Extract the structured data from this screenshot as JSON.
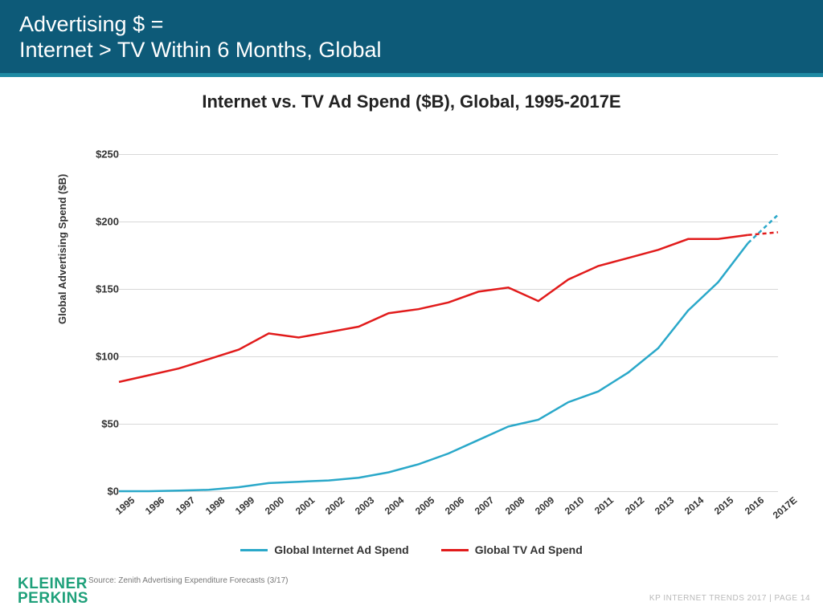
{
  "header": {
    "title_line1": "Advertising $ =",
    "title_line2": "Internet > TV Within 6 Months, Global",
    "bg_color": "#0d5a78",
    "underline_color": "#1e8aa3",
    "text_color": "#ffffff",
    "fontsize": 27
  },
  "chart": {
    "type": "line",
    "title": "Internet vs. TV Ad Spend ($B), Global, 1995-2017E",
    "title_fontsize": 22,
    "ylabel": "Global Advertising Spend ($B)",
    "label_fontsize": 13,
    "ylim": [
      0,
      250
    ],
    "ytick_step": 50,
    "ytick_prefix": "$",
    "x_categories": [
      "1995",
      "1996",
      "1997",
      "1998",
      "1999",
      "2000",
      "2001",
      "2002",
      "2003",
      "2004",
      "2005",
      "2006",
      "2007",
      "2008",
      "2009",
      "2010",
      "2011",
      "2012",
      "2013",
      "2014",
      "2015",
      "2016",
      "2017E"
    ],
    "grid_color": "#d8d8d8",
    "background_color": "#ffffff",
    "axis_color": "#333333",
    "tick_fontsize": 13,
    "xtick_fontsize": 12,
    "xtick_rotation_deg": -40,
    "line_width": 2.5,
    "forecast_start_index": 21,
    "forecast_dash": "5,4",
    "series": [
      {
        "name": "Global Internet Ad Spend",
        "color": "#2aa8c9",
        "values": [
          0,
          0,
          0.5,
          1,
          3,
          6,
          7,
          8,
          10,
          14,
          20,
          28,
          38,
          48,
          53,
          66,
          74,
          88,
          106,
          134,
          155,
          184,
          205
        ]
      },
      {
        "name": "Global TV Ad Spend",
        "color": "#e11b1b",
        "values": [
          81,
          86,
          91,
          98,
          105,
          117,
          114,
          118,
          122,
          132,
          135,
          140,
          148,
          151,
          141,
          157,
          167,
          173,
          179,
          187,
          187,
          190,
          192
        ]
      }
    ],
    "legend_fontsize": 14
  },
  "footer": {
    "logo_line1": "KLEINER",
    "logo_line2": "PERKINS",
    "logo_color": "#1ea07a",
    "source": "Source: Zenith Advertising Expenditure Forecasts (3/17)",
    "page_ref": "KP INTERNET TRENDS 2017  |  PAGE 14"
  }
}
